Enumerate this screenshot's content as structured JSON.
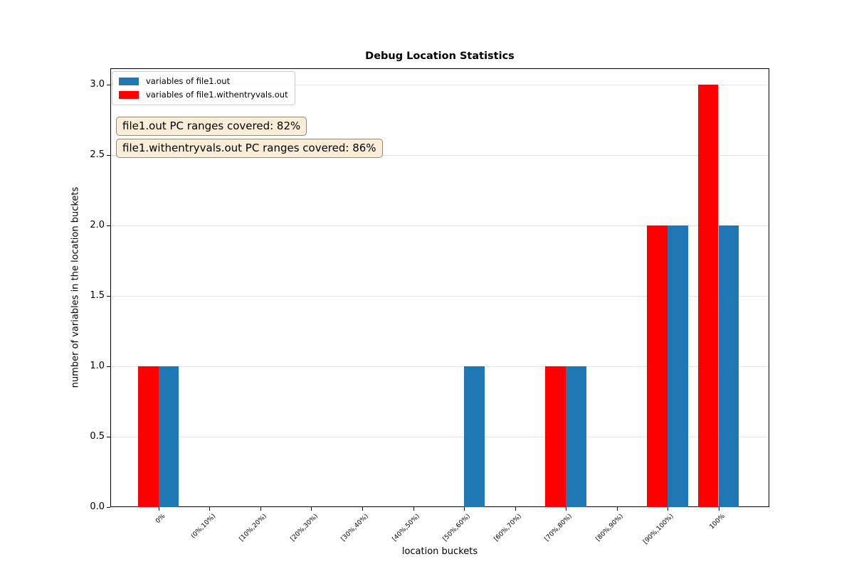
{
  "chart_data": {
    "type": "bar",
    "title": "Debug Location Statistics",
    "xlabel": "location buckets",
    "ylabel": "number of variables in the location buckets",
    "categories": [
      "0%",
      "(0%,10%)",
      "[10%,20%)",
      "[20%,30%)",
      "[30%,40%)",
      "[40%,50%)",
      "[50%,60%)",
      "[60%,70%)",
      "[70%,80%)",
      "[80%,90%)",
      "[90%,100%)",
      "100%"
    ],
    "series": [
      {
        "name": "variables of file1.out",
        "color": "#1f77b4",
        "values": [
          1,
          0,
          0,
          0,
          0,
          0,
          1,
          0,
          1,
          0,
          2,
          2
        ]
      },
      {
        "name": "variables of file1.withentryvals.out",
        "color": "#ff0000",
        "values": [
          1,
          0,
          0,
          0,
          0,
          0,
          0,
          0,
          1,
          0,
          2,
          3
        ]
      }
    ],
    "ylim": [
      0,
      3.116
    ],
    "yticks": [
      0,
      0.5,
      1,
      1.5,
      2,
      2.5,
      3
    ],
    "ytick_labels": [
      "0.0",
      "0.5",
      "1.0",
      "1.5",
      "2.0",
      "2.5",
      "3.0"
    ],
    "grid": true,
    "legend_position": "upper left",
    "annotations": [
      {
        "text": "file1.out PC ranges covered: 82%"
      },
      {
        "text": "file1.withentryvals.out PC ranges covered: 86%"
      }
    ],
    "colors": {
      "grid": "#e3e3e3",
      "annotation_bg": "#faeed9",
      "annotation_border": "#8f8a75",
      "legend_border": "#cccccc",
      "axis": "#000000"
    }
  }
}
